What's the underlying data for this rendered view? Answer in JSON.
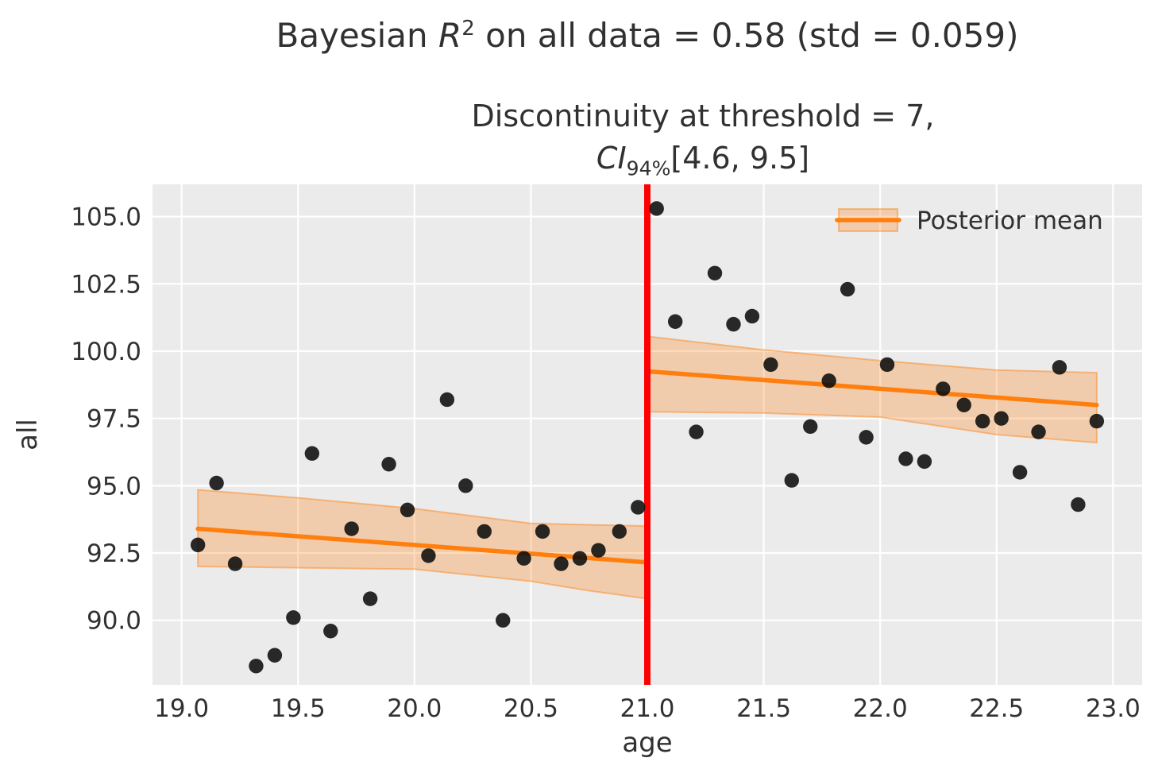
{
  "figure": {
    "title": {
      "prefix": "Bayesian ",
      "math_var": "R",
      "exponent": "2",
      "suffix": " on all data = 0.58 (std = 0.059)"
    },
    "subtitle": {
      "line1": "Discontinuity at threshold = 7,",
      "ci_var": "CI",
      "ci_sub": "94%",
      "ci_interval": "[4.6, 9.5]"
    }
  },
  "chart_data": {
    "type": "scatter",
    "title": "Bayesian R^2 on all data = 0.58 (std = 0.059)",
    "subtitle": "Discontinuity at threshold = 7, CI_94% [4.6, 9.5]",
    "xlabel": "age",
    "ylabel": "all",
    "xlim": [
      18.875,
      23.125
    ],
    "ylim": [
      87.6,
      106.2
    ],
    "grid": true,
    "x_ticks": [
      19.0,
      19.5,
      20.0,
      20.5,
      21.0,
      21.5,
      22.0,
      22.5,
      23.0
    ],
    "x_tick_labels": [
      "19.0",
      "19.5",
      "20.0",
      "20.5",
      "21.0",
      "21.5",
      "22.0",
      "22.5",
      "23.0"
    ],
    "y_ticks": [
      90.0,
      92.5,
      95.0,
      97.5,
      100.0,
      102.5,
      105.0
    ],
    "y_tick_labels": [
      "90.0",
      "92.5",
      "95.0",
      "97.5",
      "100.0",
      "102.5",
      "105.0"
    ],
    "threshold_line": {
      "x": 21.0,
      "color": "#ff0000"
    },
    "legend": {
      "label": "Posterior mean",
      "position": "upper right"
    },
    "colors": {
      "posterior_mean": "#ff7f0e",
      "band_fill": "rgba(255,127,14,0.28)",
      "band_edge": "rgba(255,127,14,0.45)",
      "scatter": "#0a0a0a",
      "plot_background": "#ebebeb",
      "gridline": "#ffffff",
      "threshold": "#ff0000",
      "text": "#313131"
    },
    "scatter": {
      "x": [
        19.07,
        19.15,
        19.23,
        19.32,
        19.4,
        19.48,
        19.56,
        19.64,
        19.73,
        19.81,
        19.89,
        19.97,
        20.06,
        20.14,
        20.22,
        20.3,
        20.38,
        20.47,
        20.55,
        20.63,
        20.71,
        20.79,
        20.88,
        20.96,
        21.04,
        21.12,
        21.21,
        21.29,
        21.37,
        21.45,
        21.53,
        21.62,
        21.7,
        21.78,
        21.86,
        21.94,
        22.03,
        22.11,
        22.19,
        22.27,
        22.36,
        22.44,
        22.52,
        22.6,
        22.68,
        22.77,
        22.85,
        22.93
      ],
      "y": [
        92.8,
        95.1,
        92.1,
        88.3,
        88.7,
        90.1,
        96.2,
        89.6,
        93.4,
        90.8,
        95.8,
        94.1,
        92.4,
        98.2,
        95.0,
        93.3,
        90.0,
        92.3,
        93.3,
        92.1,
        92.3,
        92.6,
        93.3,
        94.2,
        105.3,
        101.1,
        97.0,
        102.9,
        101.0,
        101.3,
        99.5,
        95.2,
        97.2,
        98.9,
        102.3,
        96.8,
        99.5,
        96.0,
        95.9,
        98.6,
        98.0,
        97.4,
        97.5,
        95.5,
        97.0,
        99.4,
        94.3,
        97.4
      ]
    },
    "segments": [
      {
        "name": "pre-threshold",
        "line": {
          "x": [
            19.07,
            21.0
          ],
          "y": [
            93.4,
            92.15
          ]
        },
        "band": {
          "x": [
            19.07,
            19.5,
            20.0,
            20.5,
            20.75,
            21.0
          ],
          "upper": [
            94.85,
            94.55,
            94.15,
            93.6,
            93.55,
            93.5
          ],
          "lower": [
            92.0,
            91.95,
            91.9,
            91.45,
            91.1,
            90.8
          ]
        }
      },
      {
        "name": "post-threshold",
        "line": {
          "x": [
            21.0,
            22.93
          ],
          "y": [
            99.25,
            98.0
          ]
        },
        "band": {
          "x": [
            21.0,
            21.5,
            22.0,
            22.5,
            22.93
          ],
          "upper": [
            100.55,
            100.05,
            99.65,
            99.3,
            99.2
          ],
          "lower": [
            97.75,
            97.7,
            97.55,
            96.9,
            96.6
          ]
        }
      }
    ]
  }
}
